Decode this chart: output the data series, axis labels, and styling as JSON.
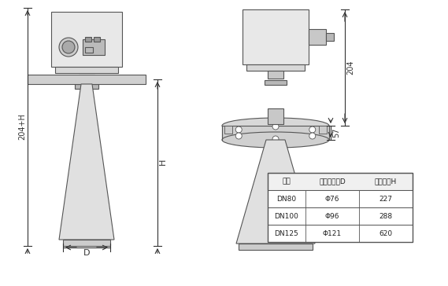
{
  "title": "",
  "bg_color": "#ffffff",
  "line_color": "#555555",
  "dim_color": "#333333",
  "table_header_bg": "#e8e8e8",
  "table_border_color": "#555555",
  "table_data": {
    "headers": [
      "法兰",
      "测吐口直径D",
      "测吐高度H"
    ],
    "rows": [
      [
        "DN80",
        "Φ76",
        "227"
      ],
      [
        "DN100",
        "Φ96",
        "288"
      ],
      [
        "DN125",
        "Φ121",
        "620"
      ]
    ]
  },
  "dim_labels": {
    "label_204": "204",
    "label_57": "57",
    "label_H": "H",
    "label_204H": "204+H",
    "label_D": "D"
  }
}
